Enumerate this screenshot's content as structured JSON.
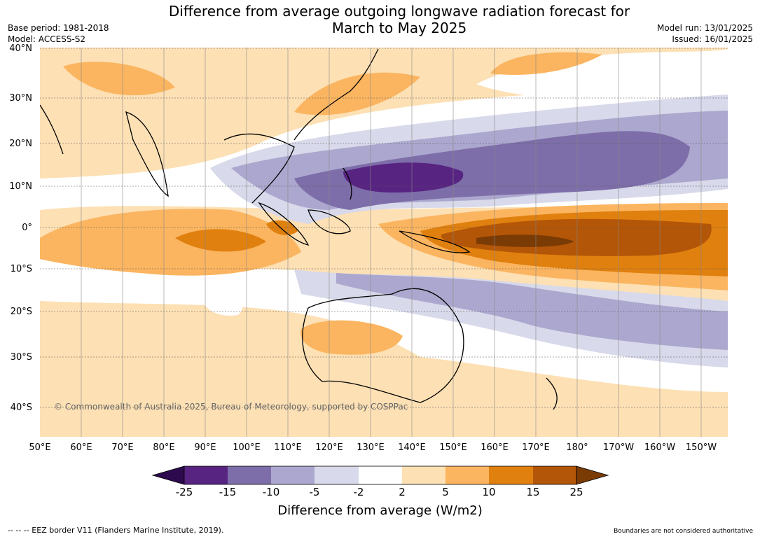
{
  "title_line1": "Difference from average outgoing longwave radiation forecast for",
  "title_line2": "March to May 2025",
  "base_period": "Base period: 1981-2018",
  "model": "Model: ACCESS-S2",
  "model_run": "Model run: 13/01/2025",
  "issued": "Issued: 16/01/2025",
  "lat_labels": [
    "40°N",
    "30°N",
    "20°N",
    "10°N",
    "0°",
    "10°S",
    "20°S",
    "30°S",
    "40°S"
  ],
  "lon_labels": [
    "50°E",
    "60°E",
    "70°E",
    "80°E",
    "90°E",
    "100°E",
    "110°E",
    "120°E",
    "130°E",
    "140°E",
    "150°E",
    "160°E",
    "170°E",
    "180°",
    "170°W",
    "160°W",
    "150°W"
  ],
  "copyright": "© Commonwealth of Australia 2025, Bureau of Meteorology, supported by COSPPac",
  "colorbar": {
    "ticks": [
      "-25",
      "-15",
      "-10",
      "-5",
      "-2",
      "2",
      "5",
      "10",
      "15",
      "25"
    ],
    "colors": [
      "#2d0a4e",
      "#582482",
      "#7d6ea9",
      "#aca7ce",
      "#d8d9ea",
      "#ffffff",
      "#fde0b4",
      "#fbb560",
      "#e0800f",
      "#b35607",
      "#7a3b05"
    ],
    "label": "Difference from average (W/m2)"
  },
  "footer_left": "--  --  -- EEZ border V11 (Flanders Marine Institute, 2019).",
  "footer_right": "Boundaries are not considered authoritative"
}
